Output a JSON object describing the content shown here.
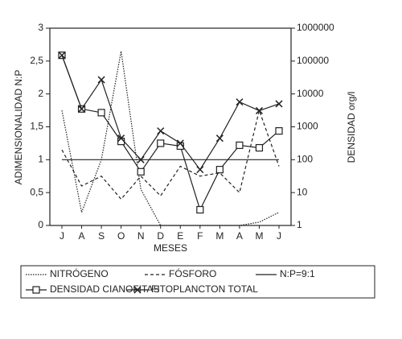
{
  "chart_data": {
    "type": "line",
    "x_label": "MESES",
    "y_label": "ADIMENSIONALIDAD N:P",
    "y2_label": "DENSIDAD org/l",
    "categories": [
      "J",
      "A",
      "S",
      "O",
      "N",
      "D",
      "E",
      "F",
      "M",
      "A",
      "M",
      "J"
    ],
    "ylim": [
      0,
      3
    ],
    "yticks": [
      0,
      {
        "value": 0.5,
        "label": "0,5"
      },
      1,
      {
        "value": 1.5,
        "label": "1,5"
      },
      2,
      {
        "value": 2.5,
        "label": "2,5"
      },
      3
    ],
    "y2lim": [
      1,
      1000000
    ],
    "y2scale": "log",
    "y2ticks": [
      1,
      10,
      100,
      1000,
      10000,
      100000,
      1000000
    ],
    "series": [
      {
        "name": "NITRÓGENO",
        "color": "#222",
        "dash": "dotted",
        "marker": "none",
        "values": [
          1.75,
          0.2,
          1.0,
          2.65,
          0.55,
          0,
          0,
          0,
          0,
          0,
          0.05,
          0.2
        ]
      },
      {
        "name": "FÓSFORO",
        "color": "#222",
        "dash": "dashed",
        "marker": "none",
        "values": [
          1.15,
          0.6,
          0.75,
          0.4,
          0.75,
          0.45,
          0.9,
          0.75,
          0.8,
          0.5,
          1.75,
          0.9
        ]
      },
      {
        "name": "N:P=9:1",
        "color": "#222",
        "dash": "solid",
        "marker": "none",
        "values": [
          1,
          1,
          1,
          1,
          1,
          1,
          1,
          1,
          1,
          1,
          1,
          1
        ]
      },
      {
        "name": "DENSIDAD CIANOFITAS",
        "color": "#222",
        "dash": "solid",
        "marker": "square",
        "axis": "y2",
        "values": [
          150000,
          3500,
          2700,
          360,
          43,
          316,
          260,
          3,
          50,
          275,
          230,
          750
        ]
      },
      {
        "name": "FITOPLANCTON TOTAL",
        "color": "#222",
        "dash": "solid",
        "marker": "x",
        "axis": "y2",
        "values": [
          150000,
          3500,
          27000,
          450,
          100,
          750,
          316,
          50,
          450,
          5700,
          3100,
          5000
        ]
      }
    ]
  }
}
